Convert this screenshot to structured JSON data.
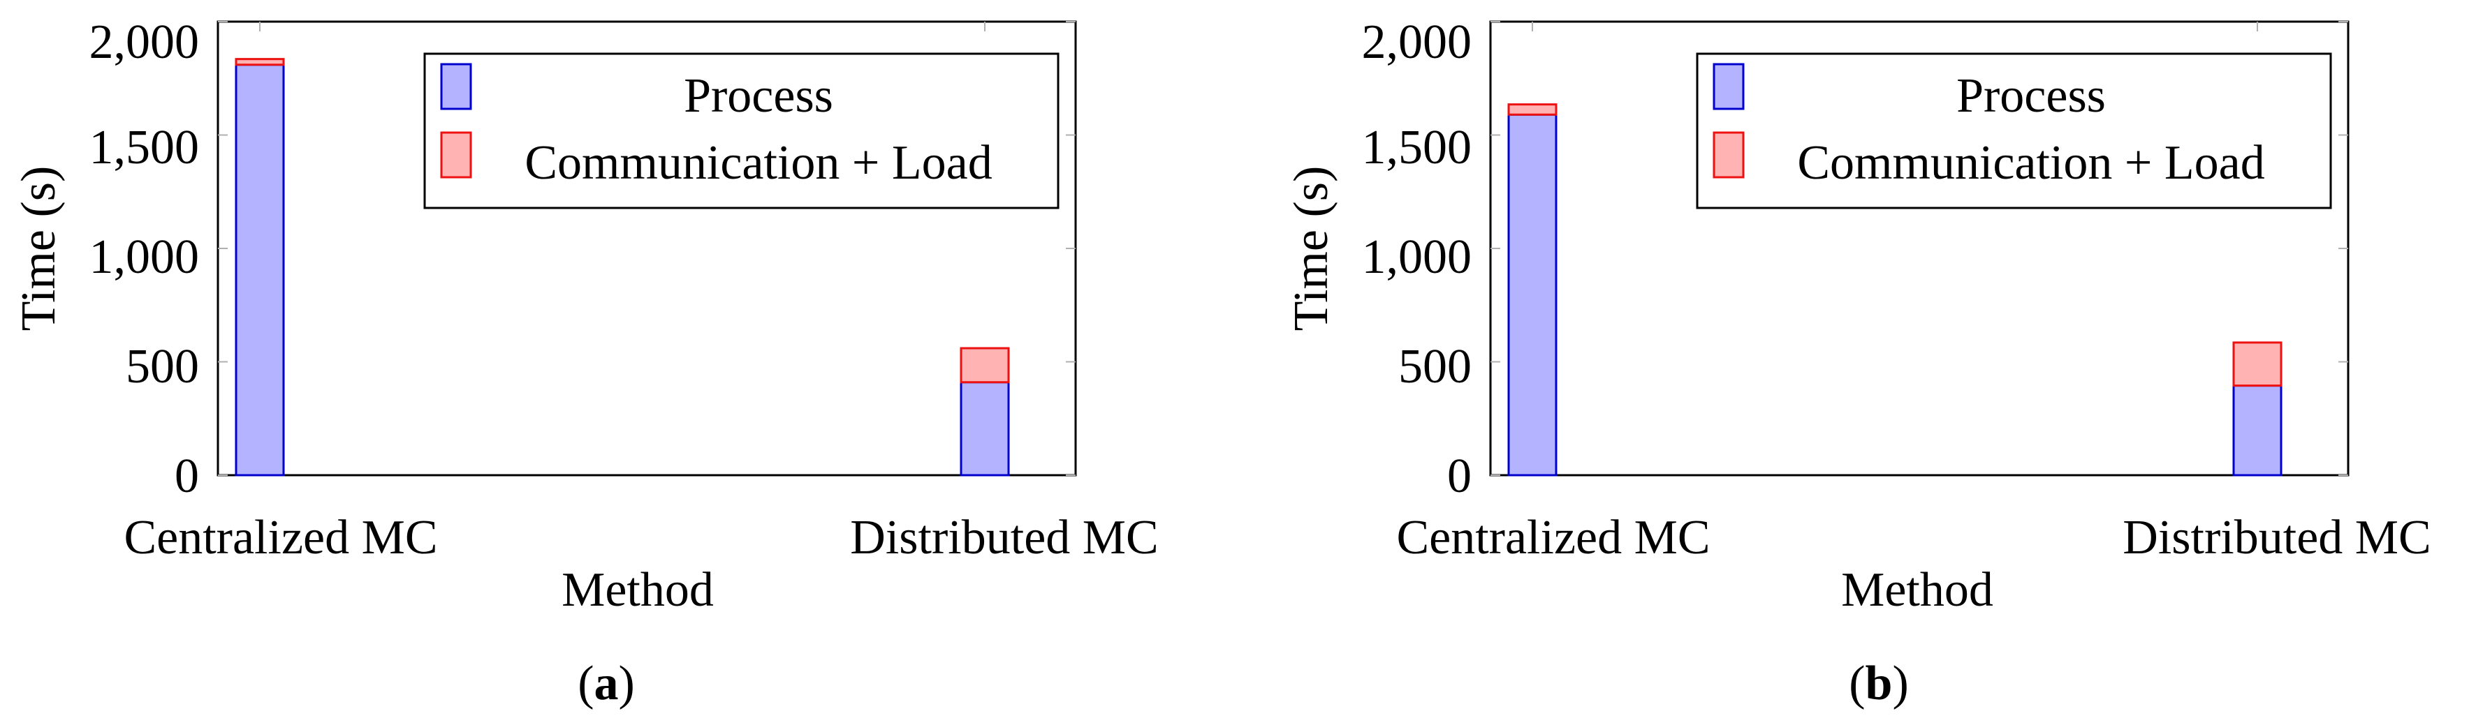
{
  "colors": {
    "process_fill": "#b3b3ff",
    "process_stroke": "#0000cc",
    "comm_fill": "#ffb3b3",
    "comm_stroke": "#ee1111",
    "grid": "#b0b0b0",
    "axis": "#000000"
  },
  "chart_data": [
    {
      "type": "bar",
      "stacked": true,
      "caption_open": "(",
      "caption_letter": "a",
      "caption_close": ")",
      "xlabel": "Method",
      "ylabel": "Time (s)",
      "categories": [
        "Centralized MC",
        "Distributed MC"
      ],
      "series": [
        {
          "name": "Process",
          "values": [
            1810,
            410
          ]
        },
        {
          "name": "Communication + Load",
          "values": [
            25,
            150
          ]
        }
      ],
      "ylim": [
        0,
        2000
      ],
      "yticks": [
        0,
        500,
        1000,
        1500,
        2000
      ],
      "ytick_labels": [
        "0",
        "500",
        "1,000",
        "1,500",
        "2,000"
      ],
      "legend_position": "top-right"
    },
    {
      "type": "bar",
      "stacked": true,
      "caption_open": "(",
      "caption_letter": "b",
      "caption_close": ")",
      "xlabel": "Method",
      "ylabel": "Time (s)",
      "categories": [
        "Centralized MC",
        "Distributed MC"
      ],
      "series": [
        {
          "name": "Process",
          "values": [
            1590,
            395
          ]
        },
        {
          "name": "Communication + Load",
          "values": [
            45,
            190
          ]
        }
      ],
      "ylim": [
        0,
        2000
      ],
      "yticks": [
        0,
        500,
        1000,
        1500,
        2000
      ],
      "ytick_labels": [
        "0",
        "500",
        "1,000",
        "1,500",
        "2,000"
      ],
      "legend_position": "top-right"
    }
  ]
}
